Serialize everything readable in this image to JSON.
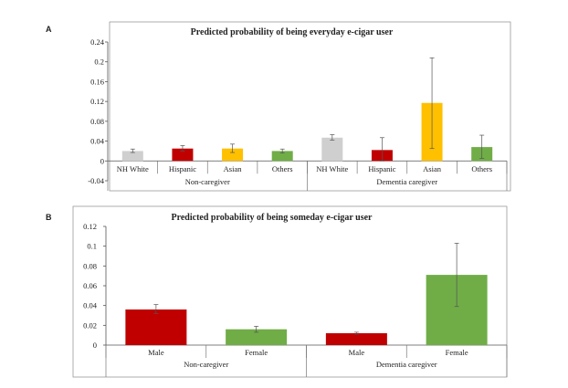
{
  "panels": [
    "A",
    "B"
  ],
  "chart_data": [
    {
      "type": "bar",
      "title": "Predicted probability of being everyday e-cigar user",
      "groups": [
        {
          "label": "Non-caregiver",
          "categories": [
            "NH White",
            "Hispanic",
            "Asian",
            "Others"
          ],
          "values": [
            0.02,
            0.025,
            0.025,
            0.02
          ],
          "error_low": [
            0.017,
            0.02,
            0.017,
            0.016
          ],
          "error_high": [
            0.024,
            0.031,
            0.034,
            0.024
          ]
        },
        {
          "label": "Dementia caregiver",
          "categories": [
            "NH White",
            "Hispanic",
            "Asian",
            "Others"
          ],
          "values": [
            0.047,
            0.022,
            0.117,
            0.028
          ],
          "error_low": [
            0.042,
            0.0,
            0.025,
            0.005
          ],
          "error_high": [
            0.053,
            0.047,
            0.208,
            0.052
          ]
        }
      ],
      "bar_colors": [
        "#cfcfcf",
        "#c00000",
        "#ffc000",
        "#70ad47"
      ],
      "ylim": [
        -0.04,
        0.24
      ],
      "yticks": [
        "-0.04",
        "0",
        "0.04",
        "0.08",
        "0.12",
        "0.16",
        "0.2",
        "0.24"
      ],
      "ytick_values": [
        -0.04,
        0,
        0.04,
        0.08,
        0.12,
        0.16,
        0.2,
        0.24
      ],
      "grid": false
    },
    {
      "type": "bar",
      "title": "Predicted probability of being someday e-cigar user",
      "groups": [
        {
          "label": "Non-caregiver",
          "categories": [
            "Male",
            "Female"
          ],
          "values": [
            0.036,
            0.016
          ],
          "error_low": [
            0.032,
            0.013
          ],
          "error_high": [
            0.041,
            0.019
          ]
        },
        {
          "label": "Dementia caregiver",
          "categories": [
            "Male",
            "Female"
          ],
          "values": [
            0.012,
            0.071
          ],
          "error_low": [
            0.011,
            0.039
          ],
          "error_high": [
            0.013,
            0.103
          ]
        }
      ],
      "bar_colors": [
        "#c00000",
        "#70ad47"
      ],
      "ylim": [
        0,
        0.12
      ],
      "yticks": [
        "0",
        "0.02",
        "0.04",
        "0.06",
        "0.08",
        "0.1",
        "0.12"
      ],
      "ytick_values": [
        0,
        0.02,
        0.04,
        0.06,
        0.08,
        0.1,
        0.12
      ],
      "grid": false
    }
  ]
}
